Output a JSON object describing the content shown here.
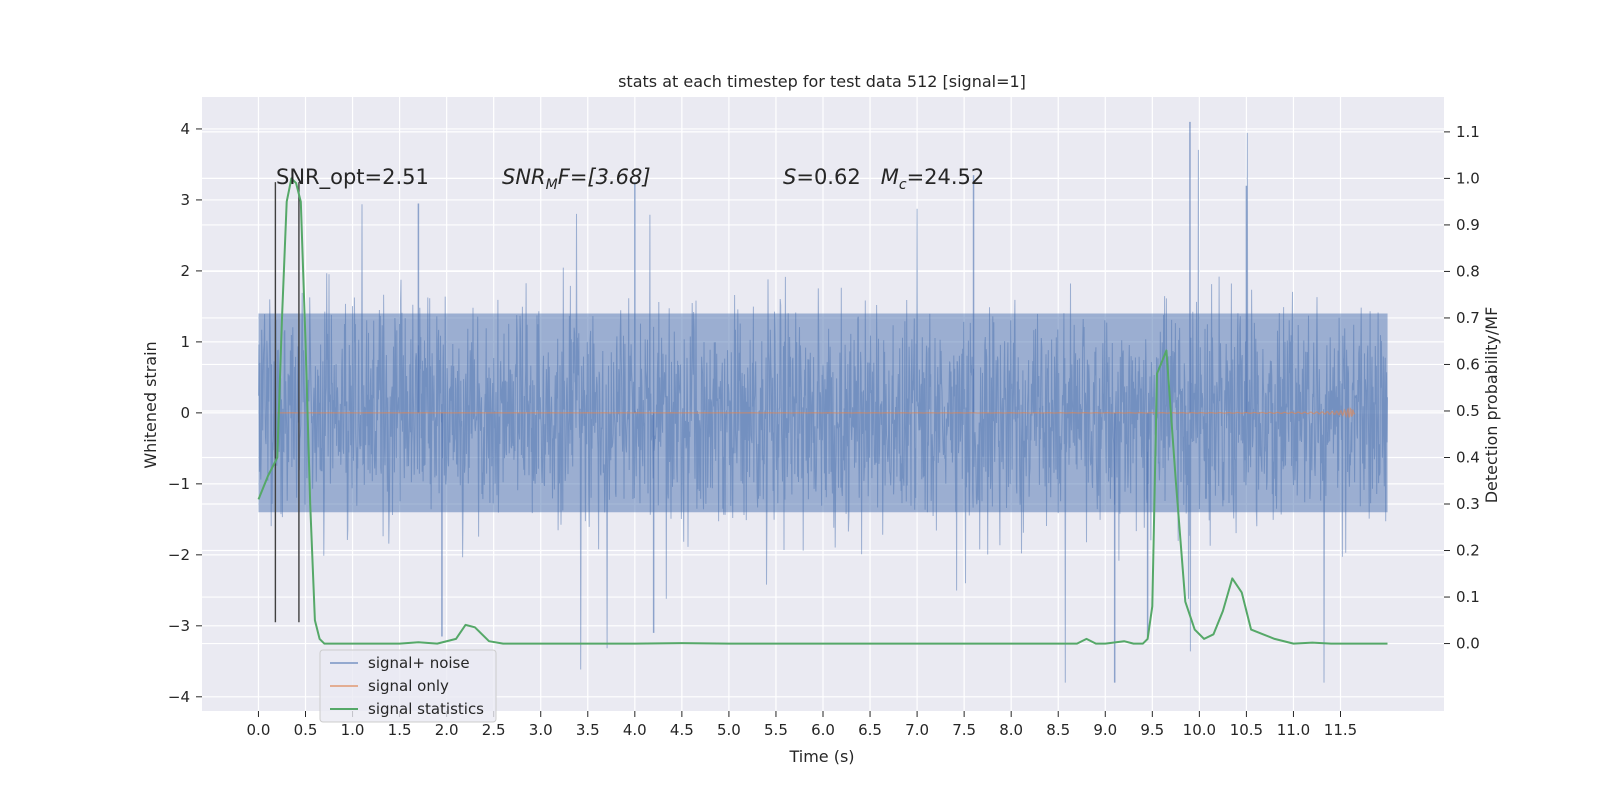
{
  "chart_data": {
    "type": "line",
    "title": "stats at each timestep for test data 512 [signal=1]",
    "xlabel": "Time (s)",
    "ylabel": "Whitened strain",
    "y2label": "Detection probability/MF",
    "xlim": [
      -0.6,
      12.6
    ],
    "ylim": [
      -4.2,
      4.45
    ],
    "y2lim": [
      -0.145,
      1.175
    ],
    "grid": true,
    "legend_position": "lower-left",
    "x_ticks": [
      "0.0",
      "0.5",
      "1.0",
      "1.5",
      "2.0",
      "2.5",
      "3.0",
      "3.5",
      "4.0",
      "4.5",
      "5.0",
      "5.5",
      "6.0",
      "6.5",
      "7.0",
      "7.5",
      "8.0",
      "8.5",
      "9.0",
      "9.5",
      "10.0",
      "10.5",
      "11.0",
      "11.5"
    ],
    "y_ticks": [
      "4",
      "3",
      "2",
      "1",
      "0",
      "−1",
      "−2",
      "−3",
      "−4"
    ],
    "y2_ticks": [
      "1.1",
      "1.0",
      "0.9",
      "0.8",
      "0.7",
      "0.6",
      "0.5",
      "0.4",
      "0.3",
      "0.2",
      "0.1",
      "0.0"
    ],
    "annotations": [
      {
        "text": "SNR_opt=2.51",
        "x": 0.2,
        "y": 3.35
      },
      {
        "text": "SNR",
        "sub": "M",
        "rest": "F=[3.68]",
        "x": 2.6,
        "y": 3.35
      },
      {
        "text": "S",
        "rest": "=0.62   ",
        "text2": "M",
        "sub2": "c",
        "rest2": "=24.52",
        "x": 5.6,
        "y": 3.35
      }
    ],
    "vlines": [
      {
        "x": 0.18,
        "y": [
          -2.95,
          3.25
        ]
      },
      {
        "x": 0.43,
        "y": [
          -2.95,
          3.25
        ]
      }
    ],
    "series": [
      {
        "name": "signal+ noise",
        "color": "#4c72b0",
        "axis": "left",
        "x_range": [
          0.0,
          12.0
        ],
        "typical_amplitude": 1.4,
        "peak_max": 4.1,
        "peak_min": -3.8
      },
      {
        "name": "signal only",
        "color": "#dd8452",
        "axis": "left",
        "x_range": [
          0.2,
          11.65
        ],
        "chirp_peak_x": 11.6,
        "chirp_peak_amplitude": 0.45
      },
      {
        "name": "signal statistics",
        "color": "#55a868",
        "axis": "right",
        "x": [
          0.0,
          0.1,
          0.15,
          0.2,
          0.25,
          0.3,
          0.35,
          0.4,
          0.45,
          0.5,
          0.55,
          0.6,
          0.65,
          0.7,
          1.0,
          1.5,
          1.7,
          1.9,
          2.1,
          2.2,
          2.3,
          2.45,
          2.6,
          3.0,
          4.0,
          4.5,
          5.0,
          6.0,
          7.0,
          8.0,
          8.7,
          8.8,
          8.9,
          9.0,
          9.2,
          9.3,
          9.4,
          9.45,
          9.5,
          9.55,
          9.65,
          9.75,
          9.85,
          9.95,
          10.05,
          10.15,
          10.25,
          10.35,
          10.45,
          10.55,
          10.8,
          11.0,
          11.2,
          11.4,
          11.7,
          12.0
        ],
        "values": [
          0.31,
          0.36,
          0.38,
          0.4,
          0.7,
          0.95,
          1.0,
          0.99,
          0.95,
          0.65,
          0.3,
          0.05,
          0.01,
          0.0,
          0.0,
          0.0,
          0.003,
          0.0,
          0.01,
          0.04,
          0.035,
          0.005,
          0.0,
          0.0,
          0.0,
          0.001,
          0.0,
          0.0,
          0.0,
          0.0,
          0.0,
          0.01,
          0.0,
          0.0,
          0.005,
          0.0,
          0.0,
          0.01,
          0.08,
          0.58,
          0.63,
          0.35,
          0.09,
          0.03,
          0.01,
          0.02,
          0.07,
          0.14,
          0.11,
          0.03,
          0.01,
          0.0,
          0.002,
          0.0,
          0.0,
          0.0
        ]
      }
    ]
  }
}
